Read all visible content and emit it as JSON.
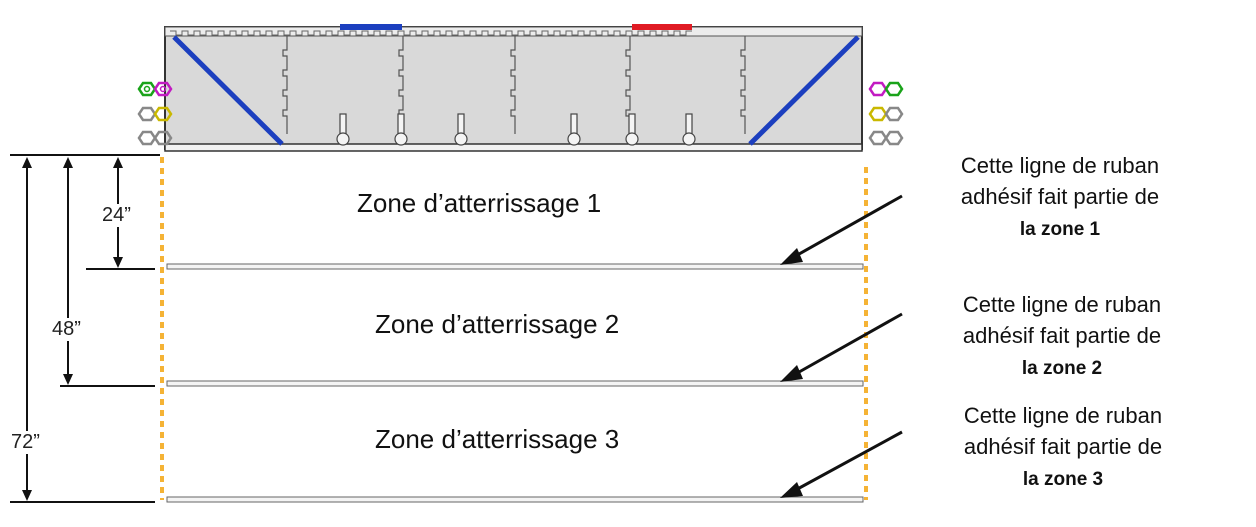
{
  "colors": {
    "panel": "#d9d9d9",
    "frame": "#333333",
    "brace": "#1c3fbf",
    "blue_marker": "#1c3fbf",
    "red_marker": "#e01b24",
    "tape": "#f4f4f4",
    "guide": "#f5b335",
    "green": "#1aa31a",
    "magenta": "#c21bc2",
    "yellow": "#c9b800",
    "gray": "#888888"
  },
  "dimensions": {
    "d24": "24”",
    "d48": "48”",
    "d72": "72”"
  },
  "zones": [
    {
      "label": "Zone d’atterrissage 1"
    },
    {
      "label": "Zone d’atterrissage 2"
    },
    {
      "label": "Zone d’atterrissage 3"
    }
  ],
  "notes": [
    {
      "line1": "Cette ligne de ruban",
      "line2": "adhésif fait partie de",
      "bold": "la zone 1"
    },
    {
      "line1": "Cette ligne de ruban",
      "line2": "adhésif fait partie de",
      "bold": "la zone 2"
    },
    {
      "line1": "Cette ligne de ruban",
      "line2": "adhésif fait partie de",
      "bold": "la zone 3"
    }
  ],
  "icons": {
    "arrow": "arrow-icon",
    "hex_nut": "hex-nut-icon"
  }
}
